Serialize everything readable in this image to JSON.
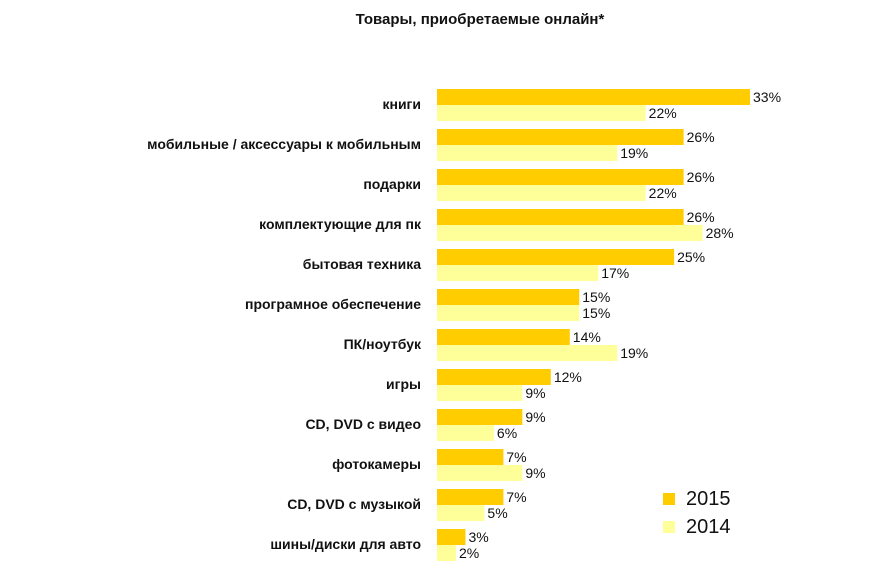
{
  "chart_data": {
    "type": "bar",
    "orientation": "horizontal",
    "title": "Товары, приобретаемые онлайн*",
    "categories": [
      "книги",
      "мобильные / аксессуары к мобильным",
      "подарки",
      "комплектующие для пк",
      "бытовая техника",
      "програмное обеспечение",
      "ПК/ноутбук",
      "игры",
      "CD, DVD с видео",
      "фотокамеры",
      "CD, DVD с музыкой",
      "шины/диски для авто"
    ],
    "series": [
      {
        "name": "2015",
        "color": "#FFCC00",
        "values": [
          33,
          26,
          26,
          26,
          25,
          15,
          14,
          12,
          9,
          7,
          7,
          3
        ],
        "labels": [
          "33%",
          "26%",
          "26%",
          "26%",
          "25%",
          "15%",
          "14%",
          "12%",
          "9%",
          "7%",
          "7%",
          "3%"
        ]
      },
      {
        "name": "2014",
        "color": "#FFFF99",
        "values": [
          22,
          19,
          22,
          28,
          17,
          15,
          19,
          9,
          6,
          9,
          5,
          2
        ],
        "labels": [
          "22%",
          "19%",
          "22%",
          "28%",
          "17%",
          "15%",
          "19%",
          "9%",
          "6%",
          "9%",
          "5%",
          "2%"
        ]
      }
    ],
    "xlim": [
      0,
      33
    ],
    "grid": false,
    "legend_position": "bottom-right"
  }
}
